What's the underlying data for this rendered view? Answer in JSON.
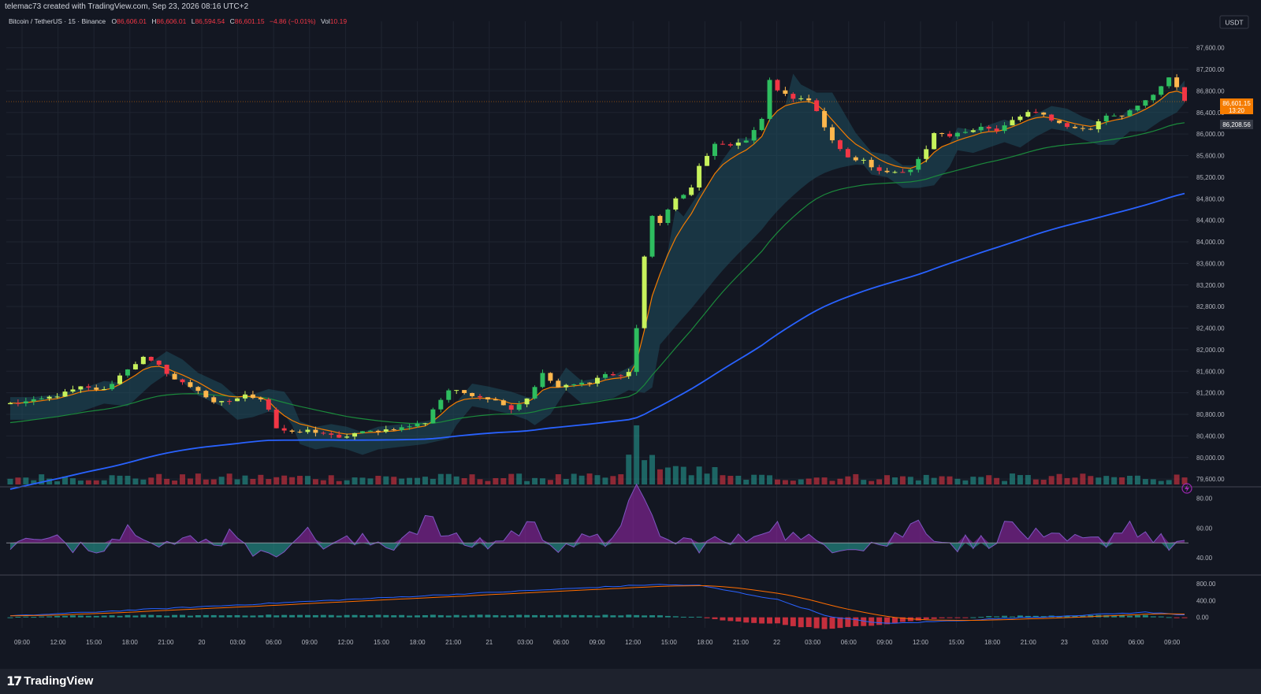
{
  "header": {
    "credit": "telemac73 created with TradingView.com, Sep 23, 2026 08:16 UTC+2"
  },
  "legend": {
    "symbol": "Bitcoin / TetherUS · 15 · Binance",
    "o_label": "O",
    "o_value": "86,606.01",
    "h_label": "H",
    "h_value": "86,606.01",
    "l_label": "L",
    "l_value": "86,594.54",
    "c_label": "C",
    "c_value": "86,601.15",
    "change": "−4.86 (−0.01%)",
    "vol_label": "Vol",
    "vol_value": "10.19"
  },
  "currency_button": "USDT",
  "price_tags": {
    "last_price": "86,601.15",
    "countdown": "13:20",
    "ma_price": "86,208.56"
  },
  "footer": {
    "brand": "TradingView"
  },
  "colors": {
    "background": "#131722",
    "grid": "#1f2430",
    "up": "#2ebd5f",
    "down": "#f23645",
    "ema_fast": "#f57c00",
    "ma_mid": "#1b8a3c",
    "ma_slow": "#2962ff",
    "cloud": "#1f4e5f",
    "rsi": "#9c27b0"
  },
  "chart_data": [
    {
      "type": "candlestick",
      "title": "Bitcoin / TetherUS · 15 · Binance",
      "y_ticks": [
        "87,600.00",
        "87,200.00",
        "86,800.00",
        "86,400.00",
        "86,000.00",
        "85,600.00",
        "85,200.00",
        "84,800.00",
        "84,400.00",
        "84,000.00",
        "83,600.00",
        "83,200.00",
        "82,800.00",
        "82,400.00",
        "82,000.00",
        "81,600.00",
        "81,200.00",
        "80,800.00",
        "80,400.00",
        "80,000.00",
        "79,600.00"
      ],
      "x_ticks": [
        "09:00",
        "12:00",
        "15:00",
        "18:00",
        "21:00",
        "20",
        "03:00",
        "06:00",
        "09:00",
        "12:00",
        "15:00",
        "18:00",
        "21:00",
        "21",
        "03:00",
        "06:00",
        "09:00",
        "12:00",
        "15:00",
        "18:00",
        "21:00",
        "22",
        "03:00",
        "06:00",
        "09:00",
        "12:00",
        "15:00",
        "18:00",
        "21:00",
        "23",
        "03:00",
        "06:00",
        "09:00"
      ],
      "ylim": [
        79500,
        87800
      ],
      "grid": true,
      "close_path": [
        [
          0,
          81000
        ],
        [
          3,
          81050
        ],
        [
          6,
          81150
        ],
        [
          9,
          81300
        ],
        [
          12,
          81250
        ],
        [
          15,
          81650
        ],
        [
          17,
          81850
        ],
        [
          19,
          81700
        ],
        [
          21,
          81450
        ],
        [
          24,
          81250
        ],
        [
          26,
          81000
        ],
        [
          28,
          81050
        ],
        [
          30,
          81150
        ],
        [
          32,
          81100
        ],
        [
          33,
          80900
        ],
        [
          34,
          80550
        ],
        [
          36,
          80450
        ],
        [
          38,
          80500
        ],
        [
          40,
          80450
        ],
        [
          42,
          80350
        ],
        [
          44,
          80450
        ],
        [
          47,
          80500
        ],
        [
          50,
          80550
        ],
        [
          53,
          80650
        ],
        [
          54,
          80900
        ],
        [
          56,
          81250
        ],
        [
          58,
          81200
        ],
        [
          61,
          81100
        ],
        [
          63,
          81000
        ],
        [
          64,
          80900
        ],
        [
          66,
          81100
        ],
        [
          68,
          81550
        ],
        [
          70,
          81300
        ],
        [
          72,
          81350
        ],
        [
          74,
          81400
        ],
        [
          76,
          81550
        ],
        [
          78,
          81500
        ],
        [
          79,
          81600
        ],
        [
          80,
          82400
        ],
        [
          81,
          83700
        ],
        [
          82,
          84500
        ],
        [
          83,
          84350
        ],
        [
          85,
          84800
        ],
        [
          87,
          85000
        ],
        [
          88,
          85400
        ],
        [
          90,
          85800
        ],
        [
          92,
          85800
        ],
        [
          94,
          85850
        ],
        [
          96,
          86300
        ],
        [
          97,
          87000
        ],
        [
          98,
          86800
        ],
        [
          100,
          86650
        ],
        [
          102,
          86650
        ],
        [
          103,
          86400
        ],
        [
          105,
          85900
        ],
        [
          107,
          85550
        ],
        [
          109,
          85500
        ],
        [
          111,
          85300
        ],
        [
          113,
          85300
        ],
        [
          115,
          85350
        ],
        [
          117,
          85700
        ],
        [
          118,
          86000
        ],
        [
          120,
          85950
        ],
        [
          122,
          86050
        ],
        [
          124,
          86150
        ],
        [
          126,
          86050
        ],
        [
          128,
          86250
        ],
        [
          130,
          86400
        ],
        [
          132,
          86350
        ],
        [
          134,
          86200
        ],
        [
          136,
          86100
        ],
        [
          138,
          86100
        ],
        [
          140,
          86350
        ],
        [
          142,
          86350
        ],
        [
          144,
          86550
        ],
        [
          146,
          86700
        ],
        [
          148,
          87050
        ],
        [
          149,
          86850
        ],
        [
          150,
          86600
        ]
      ],
      "moving_averages": [
        {
          "name": "EMA fast",
          "color": "#f57c00"
        },
        {
          "name": "MA mid",
          "color": "#1b8a3c"
        },
        {
          "name": "MA slow",
          "color": "#2962ff"
        }
      ],
      "last_price": 86601.15,
      "ma_price": 86208.56
    },
    {
      "type": "bar",
      "name": "Volume",
      "note": "volume histogram at bottom of price pane, spike at bar ~80"
    },
    {
      "type": "area",
      "name": "RSI",
      "y_ticks": [
        "80.00",
        "60.00",
        "40.00"
      ],
      "ylim": [
        30,
        85
      ],
      "midline": 50,
      "peaks": [
        [
          16,
          62
        ],
        [
          29,
          58
        ],
        [
          33,
          35
        ],
        [
          36,
          60
        ],
        [
          53,
          66
        ],
        [
          66,
          62
        ],
        [
          80,
          83
        ],
        [
          97,
          64
        ],
        [
          116,
          64
        ],
        [
          128,
          62
        ],
        [
          143,
          63
        ]
      ]
    },
    {
      "type": "line",
      "name": "MACD",
      "y_ticks": [
        "800.00",
        "400.00",
        "0.00"
      ],
      "ylim": [
        -250,
        950
      ],
      "peaks": [
        [
          82,
          780
        ],
        [
          88,
          760
        ],
        [
          98,
          420
        ],
        [
          105,
          0
        ],
        [
          112,
          -150
        ],
        [
          145,
          120
        ]
      ]
    }
  ]
}
